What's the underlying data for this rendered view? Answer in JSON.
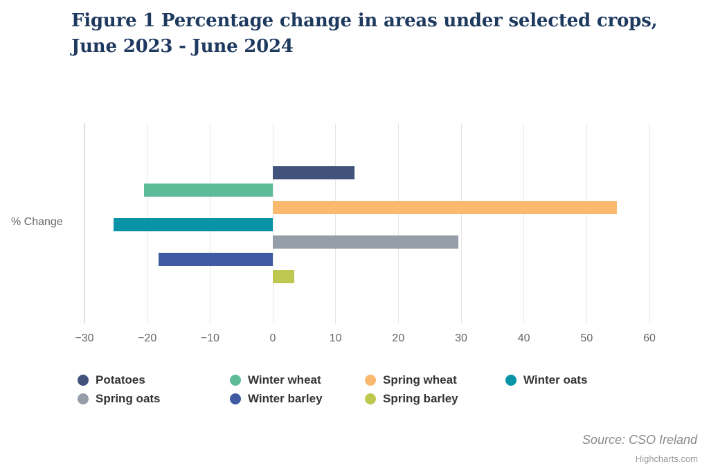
{
  "figure": {
    "title_lines": [
      "Figure 1 Percentage change in areas under selected crops,",
      "June 2023 - June 2024"
    ]
  },
  "chart_data": {
    "type": "bar",
    "orientation": "horizontal",
    "title": "Figure 1 Percentage change in areas under selected crops, June 2023 - June 2024",
    "categories": [
      "% Change"
    ],
    "category_axis_label": "% Change",
    "series": [
      {
        "name": "Potatoes",
        "value": 13.0,
        "color": "#42537B"
      },
      {
        "name": "Winter wheat",
        "value": -20.5,
        "color": "#5CBC9A"
      },
      {
        "name": "Spring wheat",
        "value": 54.8,
        "color": "#F9B96F"
      },
      {
        "name": "Winter oats",
        "value": -25.4,
        "color": "#0993A6"
      },
      {
        "name": "Spring oats",
        "value": 29.6,
        "color": "#959DA8"
      },
      {
        "name": "Winter barley",
        "value": -18.2,
        "color": "#3F5AA3"
      },
      {
        "name": "Spring barley",
        "value": 3.4,
        "color": "#BEC74F"
      }
    ],
    "value_axis": {
      "min": -30,
      "max": 60,
      "ticks": [
        -30,
        -20,
        -10,
        0,
        10,
        20,
        30,
        40,
        50,
        60
      ],
      "tick_labels": [
        "−30",
        "−20",
        "−10",
        "0",
        "10",
        "20",
        "30",
        "40",
        "50",
        "60"
      ]
    },
    "grid": true,
    "legend_position": "bottom"
  },
  "footer": {
    "source": "Source: CSO Ireland",
    "credit": "Highcharts.com"
  },
  "colors": {
    "title": "#1F3A5F",
    "grid": "#E6E6E6",
    "axis_line": "#CCD6EB",
    "tick_label": "#666666",
    "legend_text": "#333333",
    "background": "#FFFFFF"
  }
}
